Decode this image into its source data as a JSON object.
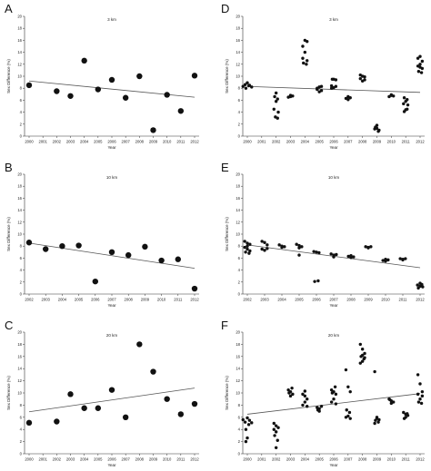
{
  "chart_data": [
    {
      "panel": "A",
      "type": "scatter",
      "title": "3 km",
      "xlabel": "Year",
      "ylabel": "Sex Difference (%)",
      "xlim": [
        2000,
        2012
      ],
      "ylim": [
        0,
        20
      ],
      "xticks": [
        2000,
        2001,
        2002,
        2003,
        2004,
        2005,
        2006,
        2007,
        2008,
        2009,
        2010,
        2011,
        2012
      ],
      "yticks": [
        0,
        2,
        4,
        6,
        8,
        10,
        12,
        14,
        16,
        18,
        20
      ],
      "marker": "large",
      "points": [
        [
          2000,
          8.5
        ],
        [
          2002,
          7.5
        ],
        [
          2003,
          6.7
        ],
        [
          2004,
          12.6
        ],
        [
          2005,
          7.8
        ],
        [
          2006,
          9.4
        ],
        [
          2007,
          6.4
        ],
        [
          2008,
          10.0
        ],
        [
          2009,
          1.0
        ],
        [
          2010,
          6.9
        ],
        [
          2011,
          4.2
        ],
        [
          2012,
          10.1
        ]
      ],
      "trend": [
        [
          2000,
          9.2
        ],
        [
          2012,
          6.5
        ]
      ]
    },
    {
      "panel": "B",
      "type": "scatter",
      "title": "10 km",
      "xlabel": "Year",
      "ylabel": "Sex Difference (%)",
      "xlim": [
        2002,
        2012
      ],
      "ylim": [
        0,
        20
      ],
      "xticks": [
        2002,
        2003,
        2004,
        2005,
        2006,
        2007,
        2008,
        2009,
        2010,
        2011,
        2012
      ],
      "yticks": [
        0,
        2,
        4,
        6,
        8,
        10,
        12,
        14,
        16,
        18,
        20
      ],
      "marker": "large",
      "points": [
        [
          2002,
          8.6
        ],
        [
          2003,
          7.5
        ],
        [
          2004,
          8.0
        ],
        [
          2005,
          8.1
        ],
        [
          2006,
          2.1
        ],
        [
          2007,
          7.0
        ],
        [
          2008,
          6.5
        ],
        [
          2009,
          7.9
        ],
        [
          2010,
          5.6
        ],
        [
          2011,
          5.8
        ],
        [
          2012,
          0.9
        ]
      ],
      "trend": [
        [
          2002,
          8.5
        ],
        [
          2012,
          4.3
        ]
      ]
    },
    {
      "panel": "C",
      "type": "scatter",
      "title": "20 km",
      "xlabel": "Year",
      "ylabel": "Sex Difference (%)",
      "xlim": [
        2000,
        2012
      ],
      "ylim": [
        0,
        20
      ],
      "xticks": [
        2000,
        2001,
        2002,
        2003,
        2004,
        2005,
        2006,
        2007,
        2008,
        2009,
        2010,
        2011,
        2012
      ],
      "yticks": [
        0,
        2,
        4,
        6,
        8,
        10,
        12,
        14,
        16,
        18,
        20
      ],
      "marker": "large",
      "points": [
        [
          2000,
          5.1
        ],
        [
          2002,
          5.3
        ],
        [
          2003,
          9.8
        ],
        [
          2004,
          7.5
        ],
        [
          2005,
          7.5
        ],
        [
          2006,
          10.5
        ],
        [
          2007,
          6.0
        ],
        [
          2008,
          18.0
        ],
        [
          2009,
          13.5
        ],
        [
          2010,
          9.0
        ],
        [
          2011,
          6.5
        ],
        [
          2012,
          8.2
        ]
      ],
      "trend": [
        [
          2000,
          6.9
        ],
        [
          2012,
          10.8
        ]
      ]
    },
    {
      "panel": "D",
      "type": "scatter",
      "title": "3 km",
      "xlabel": "Year",
      "ylabel": "Sex Difference (%)",
      "xlim": [
        2000,
        2012
      ],
      "ylim": [
        0,
        20
      ],
      "xticks": [
        2000,
        2001,
        2002,
        2003,
        2004,
        2005,
        2006,
        2007,
        2008,
        2009,
        2010,
        2011,
        2012
      ],
      "yticks": [
        0,
        2,
        4,
        6,
        8,
        10,
        12,
        14,
        16,
        18,
        20
      ],
      "marker": "small",
      "points": [
        [
          1999.7,
          8.3
        ],
        [
          1999.85,
          8.6
        ],
        [
          2000.0,
          8.9
        ],
        [
          2000.15,
          8.5
        ],
        [
          2000.3,
          8.2
        ],
        [
          1999.9,
          8.0
        ],
        [
          2000.1,
          8.4
        ],
        [
          2002.0,
          7.2
        ],
        [
          2001.9,
          6.6
        ],
        [
          2002.1,
          6.2
        ],
        [
          2002.0,
          5.8
        ],
        [
          2001.85,
          4.5
        ],
        [
          2002.15,
          4.0
        ],
        [
          2001.95,
          3.2
        ],
        [
          2002.1,
          3.0
        ],
        [
          2003.0,
          6.6
        ],
        [
          2002.85,
          6.5
        ],
        [
          2003.15,
          6.7
        ],
        [
          2003.0,
          6.8
        ],
        [
          2004.0,
          16.0
        ],
        [
          2003.85,
          15.0
        ],
        [
          2004.15,
          15.8
        ],
        [
          2004.0,
          14.0
        ],
        [
          2003.85,
          13.0
        ],
        [
          2004.15,
          12.6
        ],
        [
          2003.9,
          12.2
        ],
        [
          2004.1,
          12.0
        ],
        [
          2005.0,
          8.2
        ],
        [
          2004.85,
          7.8
        ],
        [
          2005.15,
          7.6
        ],
        [
          2005.0,
          7.4
        ],
        [
          2004.85,
          8.0
        ],
        [
          2005.15,
          8.3
        ],
        [
          2006.0,
          9.5
        ],
        [
          2005.85,
          8.4
        ],
        [
          2006.15,
          8.3
        ],
        [
          2005.85,
          8.0
        ],
        [
          2006.0,
          8.1
        ],
        [
          2006.15,
          9.4
        ],
        [
          2005.9,
          9.5
        ],
        [
          2006.85,
          6.3
        ],
        [
          2007.0,
          6.1
        ],
        [
          2007.15,
          6.4
        ],
        [
          2007.0,
          6.6
        ],
        [
          2008.0,
          10.0
        ],
        [
          2007.85,
          9.6
        ],
        [
          2008.15,
          9.4
        ],
        [
          2008.0,
          9.2
        ],
        [
          2007.85,
          10.2
        ],
        [
          2008.15,
          9.9
        ],
        [
          2008.85,
          1.2
        ],
        [
          2009.0,
          1.8
        ],
        [
          2009.15,
          1.0
        ],
        [
          2008.9,
          1.5
        ],
        [
          2009.1,
          0.8
        ],
        [
          2009.0,
          1.3
        ],
        [
          2009.85,
          6.6
        ],
        [
          2010.0,
          6.8
        ],
        [
          2010.15,
          6.7
        ],
        [
          2010.0,
          6.9
        ],
        [
          2010.9,
          6.4
        ],
        [
          2011.1,
          6.1
        ],
        [
          2011.0,
          5.8
        ],
        [
          2010.85,
          5.4
        ],
        [
          2011.15,
          5.2
        ],
        [
          2011.0,
          4.4
        ],
        [
          2010.9,
          4.1
        ],
        [
          2011.1,
          4.5
        ],
        [
          2012.0,
          13.3
        ],
        [
          2011.85,
          13.0
        ],
        [
          2012.15,
          12.5
        ],
        [
          2012.0,
          12.0
        ],
        [
          2011.85,
          11.7
        ],
        [
          2012.15,
          11.3
        ],
        [
          2011.9,
          10.8
        ],
        [
          2012.1,
          10.6
        ],
        [
          2012.0,
          11.5
        ]
      ],
      "trend": [
        [
          2000,
          8.3
        ],
        [
          2012,
          7.3
        ]
      ]
    },
    {
      "panel": "E",
      "type": "scatter",
      "title": "10 km",
      "xlabel": "Year",
      "ylabel": "Sex Difference (%)",
      "xlim": [
        2002,
        2012
      ],
      "ylim": [
        0,
        20
      ],
      "xticks": [
        2002,
        2003,
        2004,
        2005,
        2006,
        2007,
        2008,
        2009,
        2010,
        2011,
        2012
      ],
      "yticks": [
        0,
        2,
        4,
        6,
        8,
        10,
        12,
        14,
        16,
        18,
        20
      ],
      "marker": "small",
      "points": [
        [
          2001.85,
          8.8
        ],
        [
          2002.0,
          8.5
        ],
        [
          2002.15,
          8.3
        ],
        [
          2001.85,
          7.8
        ],
        [
          2002.0,
          7.5
        ],
        [
          2002.15,
          7.2
        ],
        [
          2001.9,
          7.0
        ],
        [
          2002.1,
          6.8
        ],
        [
          2002.0,
          8.0
        ],
        [
          2002.85,
          8.8
        ],
        [
          2003.0,
          8.6
        ],
        [
          2003.15,
          8.2
        ],
        [
          2002.85,
          7.5
        ],
        [
          2003.0,
          7.3
        ],
        [
          2003.15,
          7.6
        ],
        [
          2003.85,
          8.2
        ],
        [
          2004.0,
          8.0
        ],
        [
          2004.15,
          7.9
        ],
        [
          2004.0,
          7.8
        ],
        [
          2004.85,
          8.3
        ],
        [
          2005.0,
          8.1
        ],
        [
          2005.15,
          7.9
        ],
        [
          2005.0,
          7.7
        ],
        [
          2005.0,
          6.5
        ],
        [
          2005.85,
          7.1
        ],
        [
          2006.0,
          7.0
        ],
        [
          2006.15,
          6.9
        ],
        [
          2005.9,
          2.1
        ],
        [
          2006.1,
          2.2
        ],
        [
          2006.85,
          6.7
        ],
        [
          2007.0,
          6.5
        ],
        [
          2007.15,
          6.6
        ],
        [
          2007.0,
          6.2
        ],
        [
          2007.85,
          6.3
        ],
        [
          2008.0,
          6.1
        ],
        [
          2008.15,
          6.2
        ],
        [
          2008.0,
          6.4
        ],
        [
          2008.85,
          7.9
        ],
        [
          2009.0,
          7.8
        ],
        [
          2009.15,
          7.9
        ],
        [
          2009.0,
          7.7
        ],
        [
          2009.85,
          5.6
        ],
        [
          2010.0,
          5.5
        ],
        [
          2010.15,
          5.7
        ],
        [
          2010.0,
          5.8
        ],
        [
          2010.85,
          5.9
        ],
        [
          2011.0,
          5.8
        ],
        [
          2011.15,
          5.9
        ],
        [
          2011.0,
          5.7
        ],
        [
          2011.85,
          1.5
        ],
        [
          2012.0,
          1.8
        ],
        [
          2012.15,
          1.2
        ],
        [
          2011.9,
          1.0
        ],
        [
          2012.1,
          1.6
        ],
        [
          2012.0,
          1.3
        ]
      ],
      "trend": [
        [
          2002,
          8.2
        ],
        [
          2012,
          4.4
        ]
      ]
    },
    {
      "panel": "F",
      "type": "scatter",
      "title": "20 km",
      "xlabel": "Year",
      "ylabel": "Sex Difference (%)",
      "xlim": [
        2000,
        2012
      ],
      "ylim": [
        0,
        20
      ],
      "xticks": [
        2000,
        2001,
        2002,
        2003,
        2004,
        2005,
        2006,
        2007,
        2008,
        2009,
        2010,
        2011,
        2012
      ],
      "yticks": [
        0,
        2,
        4,
        6,
        8,
        10,
        12,
        14,
        16,
        18,
        20
      ],
      "marker": "small",
      "points": [
        [
          1999.7,
          5.6
        ],
        [
          1999.85,
          5.2
        ],
        [
          2000.0,
          5.9
        ],
        [
          2000.15,
          5.5
        ],
        [
          2000.3,
          5.1
        ],
        [
          1999.9,
          4.0
        ],
        [
          2000.1,
          4.8
        ],
        [
          2000.0,
          2.6
        ],
        [
          1999.9,
          2.0
        ],
        [
          2001.85,
          5.0
        ],
        [
          2002.0,
          4.6
        ],
        [
          2002.15,
          4.3
        ],
        [
          2002.0,
          3.6
        ],
        [
          2001.9,
          3.0
        ],
        [
          2002.1,
          2.2
        ],
        [
          2002.0,
          1.0
        ],
        [
          2001.85,
          4.0
        ],
        [
          2002.85,
          10.5
        ],
        [
          2003.0,
          10.2
        ],
        [
          2003.15,
          9.8
        ],
        [
          2003.0,
          9.5
        ],
        [
          2002.9,
          10.0
        ],
        [
          2003.1,
          10.8
        ],
        [
          2003.85,
          9.8
        ],
        [
          2004.0,
          9.5
        ],
        [
          2004.15,
          9.0
        ],
        [
          2004.0,
          8.5
        ],
        [
          2003.85,
          8.0
        ],
        [
          2004.15,
          7.8
        ],
        [
          2004.0,
          10.3
        ],
        [
          2004.85,
          7.6
        ],
        [
          2005.0,
          7.4
        ],
        [
          2005.15,
          7.8
        ],
        [
          2005.0,
          7.0
        ],
        [
          2004.9,
          7.2
        ],
        [
          2005.85,
          10.5
        ],
        [
          2006.0,
          10.2
        ],
        [
          2006.15,
          9.8
        ],
        [
          2006.0,
          9.0
        ],
        [
          2005.85,
          8.5
        ],
        [
          2006.15,
          8.2
        ],
        [
          2005.9,
          10.0
        ],
        [
          2006.1,
          11.0
        ],
        [
          2006.85,
          13.8
        ],
        [
          2007.0,
          11.0
        ],
        [
          2007.15,
          10.2
        ],
        [
          2006.9,
          7.2
        ],
        [
          2007.1,
          6.8
        ],
        [
          2007.0,
          6.2
        ],
        [
          2006.85,
          6.0
        ],
        [
          2007.15,
          5.8
        ],
        [
          2007.85,
          18.0
        ],
        [
          2008.0,
          17.2
        ],
        [
          2008.15,
          16.5
        ],
        [
          2007.9,
          16.0
        ],
        [
          2008.1,
          15.6
        ],
        [
          2008.0,
          15.2
        ],
        [
          2007.85,
          14.9
        ],
        [
          2008.15,
          15.8
        ],
        [
          2008.0,
          16.2
        ],
        [
          2008.85,
          13.5
        ],
        [
          2009.0,
          6.0
        ],
        [
          2009.15,
          5.6
        ],
        [
          2008.9,
          5.5
        ],
        [
          2009.1,
          5.2
        ],
        [
          2009.0,
          5.8
        ],
        [
          2008.85,
          5.0
        ],
        [
          2009.85,
          9.0
        ],
        [
          2010.0,
          8.7
        ],
        [
          2010.15,
          8.5
        ],
        [
          2010.0,
          8.3
        ],
        [
          2009.9,
          8.9
        ],
        [
          2010.85,
          6.8
        ],
        [
          2011.0,
          6.5
        ],
        [
          2011.15,
          6.3
        ],
        [
          2011.0,
          6.0
        ],
        [
          2010.9,
          5.8
        ],
        [
          2011.1,
          6.6
        ],
        [
          2011.85,
          13.0
        ],
        [
          2012.0,
          11.5
        ],
        [
          2012.15,
          10.2
        ],
        [
          2011.85,
          9.8
        ],
        [
          2012.15,
          9.5
        ],
        [
          2011.9,
          8.5
        ],
        [
          2012.1,
          8.3
        ],
        [
          2012.0,
          9.0
        ]
      ],
      "trend": [
        [
          2000,
          6.5
        ],
        [
          2012,
          9.9
        ]
      ]
    }
  ]
}
